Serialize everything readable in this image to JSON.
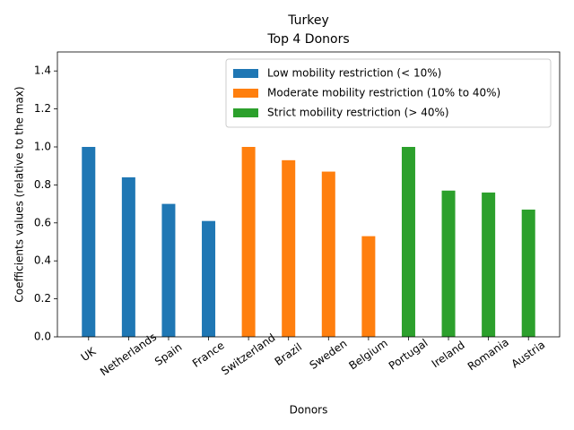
{
  "chart_data": {
    "type": "bar",
    "title": "Turkey",
    "subtitle": "Top 4 Donors",
    "x_label": "Donors",
    "y_label": "Coefficients values (relative to the max)",
    "categories": [
      "UK",
      "Netherlands",
      "Spain",
      "France",
      "Switzerland",
      "Brazil",
      "Sweden",
      "Belgium",
      "Portugal",
      "Ireland",
      "Romania",
      "Austria"
    ],
    "series": [
      {
        "name": "Low mobility restriction (< 10%)",
        "color": "#1f77b4",
        "values": [
          1.0,
          0.84,
          0.7,
          0.61,
          null,
          null,
          null,
          null,
          null,
          null,
          null,
          null
        ]
      },
      {
        "name": "Moderate mobility restriction (10% to 40%)",
        "color": "#ff7f0e",
        "values": [
          null,
          null,
          null,
          null,
          1.0,
          0.93,
          0.87,
          0.53,
          null,
          null,
          null,
          null
        ]
      },
      {
        "name": "Strict mobility restriction (> 40%)",
        "color": "#2ca02c",
        "values": [
          null,
          null,
          null,
          null,
          null,
          null,
          null,
          null,
          1.0,
          0.77,
          0.76,
          0.67
        ]
      }
    ],
    "ylim": [
      0,
      1.5
    ],
    "yticks": [
      {
        "value": 0,
        "label": "0.0"
      },
      {
        "value": 0.2,
        "label": "0.2"
      },
      {
        "value": 0.4,
        "label": "0.4"
      },
      {
        "value": 0.6,
        "label": "0.6"
      },
      {
        "value": 0.8,
        "label": "0.8"
      },
      {
        "value": 1.0,
        "label": "1.0"
      },
      {
        "value": 1.2,
        "label": "1.2"
      },
      {
        "value": 1.4,
        "label": "1.4"
      }
    ],
    "grid": false,
    "legend": "upper right"
  }
}
